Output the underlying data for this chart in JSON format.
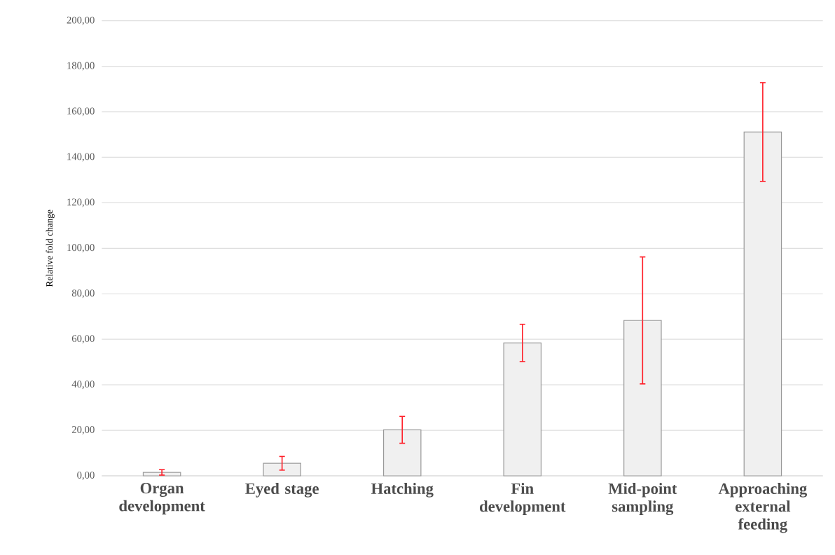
{
  "chart_data": {
    "type": "bar",
    "ylabel": "Relative fold change",
    "categories": [
      "Organ development",
      "Eyed stage",
      "Hatching",
      "Fin development",
      "Mid-point sampling",
      "Approaching external feeding"
    ],
    "values": [
      1.5,
      5.5,
      20.2,
      58.4,
      68.3,
      151.1
    ],
    "errors": [
      1.2,
      3.0,
      5.9,
      8.2,
      27.9,
      21.7
    ],
    "color": "#f0f0f0",
    "ylim": [
      0,
      200
    ],
    "yticks": [
      {
        "value": 0,
        "label": "0,00"
      },
      {
        "value": 20,
        "label": "20,00"
      },
      {
        "value": 40,
        "label": "40,00"
      },
      {
        "value": 60,
        "label": "60,00"
      },
      {
        "value": 80,
        "label": "80,00"
      },
      {
        "value": 100,
        "label": "100,00"
      },
      {
        "value": 120,
        "label": "120,00"
      },
      {
        "value": 140,
        "label": "140,00"
      },
      {
        "value": 160,
        "label": "160,00"
      },
      {
        "value": 180,
        "label": "180,00"
      },
      {
        "value": 200,
        "label": "200,00"
      }
    ],
    "grid": "y"
  }
}
